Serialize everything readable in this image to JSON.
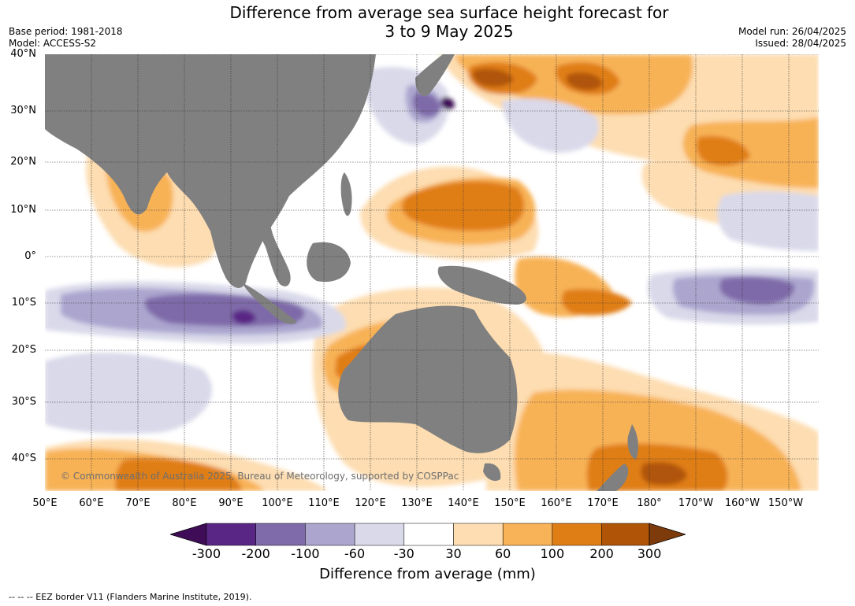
{
  "title_line1": "Difference from average sea surface height forecast for",
  "title_line2": "3 to 9 May 2025",
  "meta_left": {
    "base_period": "Base period: 1981-2018",
    "model": "Model: ACCESS-S2"
  },
  "meta_right": {
    "model_run": "Model run: 26/04/2025",
    "issued": "Issued: 28/04/2025"
  },
  "copyright": "© Commonwealth of Australia 2025, Bureau of Meteorology, supported by COSPPac",
  "lat_labels": [
    "40°N",
    "30°N",
    "20°N",
    "10°N",
    "0°",
    "10°S",
    "20°S",
    "30°S",
    "40°S"
  ],
  "lon_labels": [
    "50°E",
    "60°E",
    "70°E",
    "80°E",
    "90°E",
    "100°E",
    "110°E",
    "120°E",
    "130°E",
    "140°E",
    "150°E",
    "160°E",
    "170°E",
    "180°",
    "170°W",
    "160°W",
    "150°W"
  ],
  "colorbar": {
    "title": "Difference from average (mm)",
    "ticks": [
      "-300",
      "-200",
      "-100",
      "-60",
      "-30",
      "30",
      "60",
      "100",
      "200",
      "300"
    ],
    "colors": [
      "#3f0d57",
      "#5a2686",
      "#7f6ba9",
      "#aca6cf",
      "#d9d9ea",
      "#ffffff",
      "#fdddb1",
      "#f8b257",
      "#e07e16",
      "#b05507",
      "#7d3b0c"
    ]
  },
  "footnote": "--  --  -- EEZ border V11 (Flanders Marine Institute, 2019)."
}
